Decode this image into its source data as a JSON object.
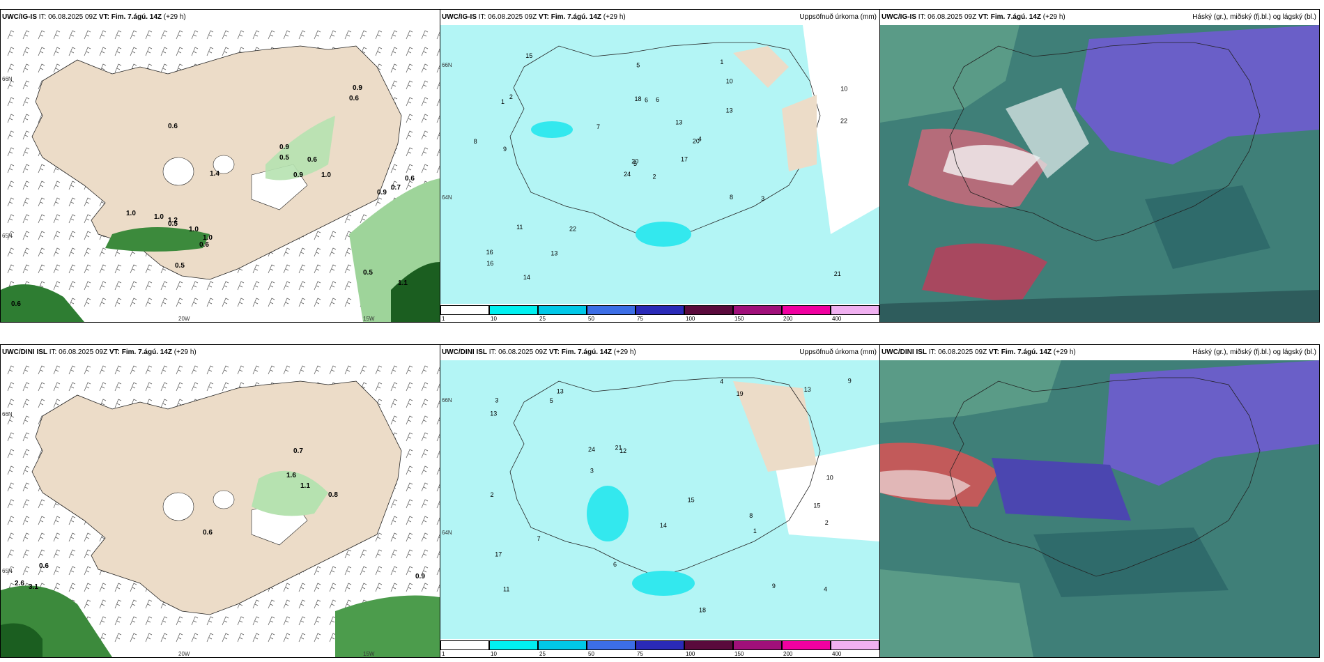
{
  "panels": [
    {
      "id": "p1",
      "model": "UWC/IG-IS",
      "it_label": "IT:",
      "it_value": "06.08.2025 09Z",
      "vt_label": "VT:",
      "vt_value": "Fim. 7.ágú. 14Z",
      "lead": "(+29 h)",
      "right_title": "",
      "values": [
        "0.9",
        "0.6",
        "0.6",
        "0.9",
        "0.5",
        "1.4",
        "1.0",
        "0.6",
        "0.9",
        "1.0",
        "1.0",
        "1.2",
        "1.0",
        "1.0",
        "0.6",
        "0.5",
        "0.9",
        "0.7",
        "0.6",
        "0.5",
        "1.1",
        "0.6",
        "0.5"
      ],
      "axis": [
        "66N",
        "65N",
        "20W",
        "15W"
      ]
    },
    {
      "id": "p2",
      "model": "UWC/IG-IS",
      "it_label": "IT:",
      "it_value": "06.08.2025 09Z",
      "vt_label": "VT:",
      "vt_value": "Fim. 7.ágú. 14Z",
      "lead": "(+29 h)",
      "right_title": "Uppsöfnuð úrkoma (mm)",
      "numbers": [
        "2",
        "1",
        "5",
        "16",
        "20",
        "22",
        "1",
        "6",
        "10",
        "17",
        "15",
        "21",
        "9",
        "10",
        "24",
        "13",
        "14",
        "18",
        "13",
        "11",
        "7",
        "16",
        "13",
        "6",
        "4",
        "3",
        "2",
        "5",
        "8",
        "8",
        "22",
        "20"
      ],
      "colorbar": [
        "1",
        "10",
        "25",
        "50",
        "75",
        "100",
        "150",
        "200",
        "400"
      ],
      "axis": [
        "66N",
        "64N"
      ]
    },
    {
      "id": "p3",
      "model": "UWC/IG-IS",
      "it_label": "IT:",
      "it_value": "06.08.2025 09Z",
      "vt_label": "VT:",
      "vt_value": "Fim. 7.ágú. 14Z",
      "lead": "(+29 h)",
      "right_title": "Háský (gr.), miðský (fj.bl.) og lágský (bl.)"
    },
    {
      "id": "p4",
      "model": "UWC/DINI ISL",
      "it_label": "IT:",
      "it_value": "06.08.2025 09Z",
      "vt_label": "VT:",
      "vt_value": "Fim. 7.ágú. 14Z",
      "lead": "(+29 h)",
      "right_title": "",
      "values": [
        "0.7",
        "1.6",
        "1.1",
        "0.8",
        "0.6",
        "0.6",
        "2.6",
        "3.1",
        "0.9"
      ],
      "axis": [
        "66N",
        "65N",
        "20W",
        "15W"
      ]
    },
    {
      "id": "p5",
      "model": "UWC/DINI ISL",
      "it_label": "IT:",
      "it_value": "06.08.2025 09Z",
      "vt_label": "VT:",
      "vt_value": "Fim. 7.ágú. 14Z",
      "lead": "(+29 h)",
      "right_title": "Uppsöfnuð úrkoma (mm)",
      "numbers": [
        "8",
        "15",
        "11",
        "13",
        "12",
        "9",
        "17",
        "19",
        "24",
        "18",
        "13",
        "2",
        "3",
        "4",
        "6",
        "10",
        "14",
        "15",
        "21",
        "7",
        "9",
        "13",
        "3",
        "2",
        "4",
        "5",
        "1"
      ],
      "colorbar": [
        "1",
        "10",
        "25",
        "50",
        "75",
        "100",
        "150",
        "200",
        "400"
      ],
      "axis": [
        "66N",
        "64N"
      ]
    },
    {
      "id": "p6",
      "model": "UWC/DINI ISL",
      "it_label": "IT:",
      "it_value": "06.08.2025 09Z",
      "vt_label": "VT:",
      "vt_value": "Fim. 7.ágú. 14Z",
      "lead": "(+29 h)",
      "right_title": "Háský (gr.), miðský (fj.bl.) og lágský (bl.)"
    }
  ],
  "colors": {
    "land": "#ecdcc8",
    "precip_light": "#b3f5f5",
    "precip_cyan": "#33e8ee",
    "cloud_high": "#5a9b87",
    "cloud_mid": "#6a5fc8",
    "cloud_low": "#2f6b6b",
    "colorbar": [
      "#ffffff",
      "#00f0f0",
      "#00c8e8",
      "#3c6ee6",
      "#2a2ab8",
      "#5a0a3c",
      "#a0107a",
      "#f000a0",
      "#f0b0f0"
    ]
  }
}
